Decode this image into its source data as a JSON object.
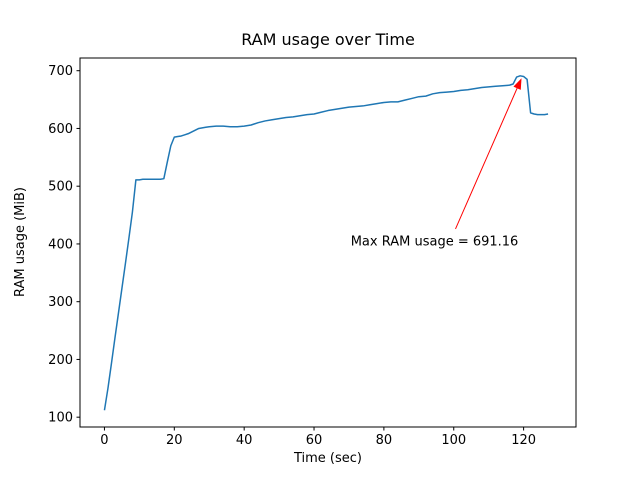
{
  "chart_data": {
    "type": "line",
    "title": "RAM usage over Time",
    "xlabel": "Time (sec)",
    "ylabel": "RAM usage (MiB)",
    "xlim": [
      -7,
      135
    ],
    "ylim": [
      83,
      722
    ],
    "xticks": [
      0,
      20,
      40,
      60,
      80,
      100,
      120
    ],
    "yticks": [
      100,
      200,
      300,
      400,
      500,
      600,
      700
    ],
    "grid": false,
    "legend": "none",
    "line_color": "#1f77b4",
    "max_value": 691.16,
    "x": [
      0,
      1,
      2,
      3,
      4,
      5,
      6,
      7,
      8,
      9,
      10,
      11,
      12,
      13,
      14,
      15,
      16,
      17,
      18,
      19,
      20,
      21,
      22,
      23,
      24,
      25,
      26,
      27,
      28,
      29,
      30,
      32,
      34,
      36,
      38,
      40,
      42,
      44,
      46,
      48,
      50,
      52,
      54,
      56,
      58,
      60,
      62,
      64,
      66,
      68,
      70,
      72,
      74,
      76,
      78,
      80,
      82,
      84,
      86,
      88,
      90,
      92,
      94,
      96,
      98,
      100,
      102,
      104,
      106,
      108,
      110,
      112,
      114,
      116,
      117,
      118,
      119,
      120,
      121,
      122,
      123,
      124,
      125,
      126,
      127
    ],
    "y": [
      112,
      150,
      193,
      237,
      280,
      323,
      366,
      410,
      455,
      511,
      511,
      512,
      512,
      512,
      512,
      512,
      512,
      513,
      542,
      570,
      585,
      586,
      587,
      589,
      591,
      594,
      597,
      600,
      601,
      602,
      603,
      604,
      604,
      603,
      603,
      604,
      606,
      610,
      613,
      615,
      617,
      619,
      620,
      622,
      624,
      625,
      628,
      631,
      633,
      635,
      637,
      638,
      639,
      641,
      643,
      645,
      646,
      646,
      649,
      652,
      655,
      656,
      660,
      662,
      663,
      664,
      666,
      667,
      669,
      671,
      672,
      673,
      674,
      675,
      677,
      689,
      691.16,
      690,
      685,
      627,
      625,
      624,
      624,
      624,
      625
    ],
    "annotation": {
      "text": "Max RAM usage = 691.16",
      "color": "#ff0000",
      "text_xy": [
        70.5,
        397
      ],
      "arrow_tail_xy": [
        100.5,
        426
      ],
      "arrow_tip_xy": [
        119.4,
        687
      ]
    }
  }
}
